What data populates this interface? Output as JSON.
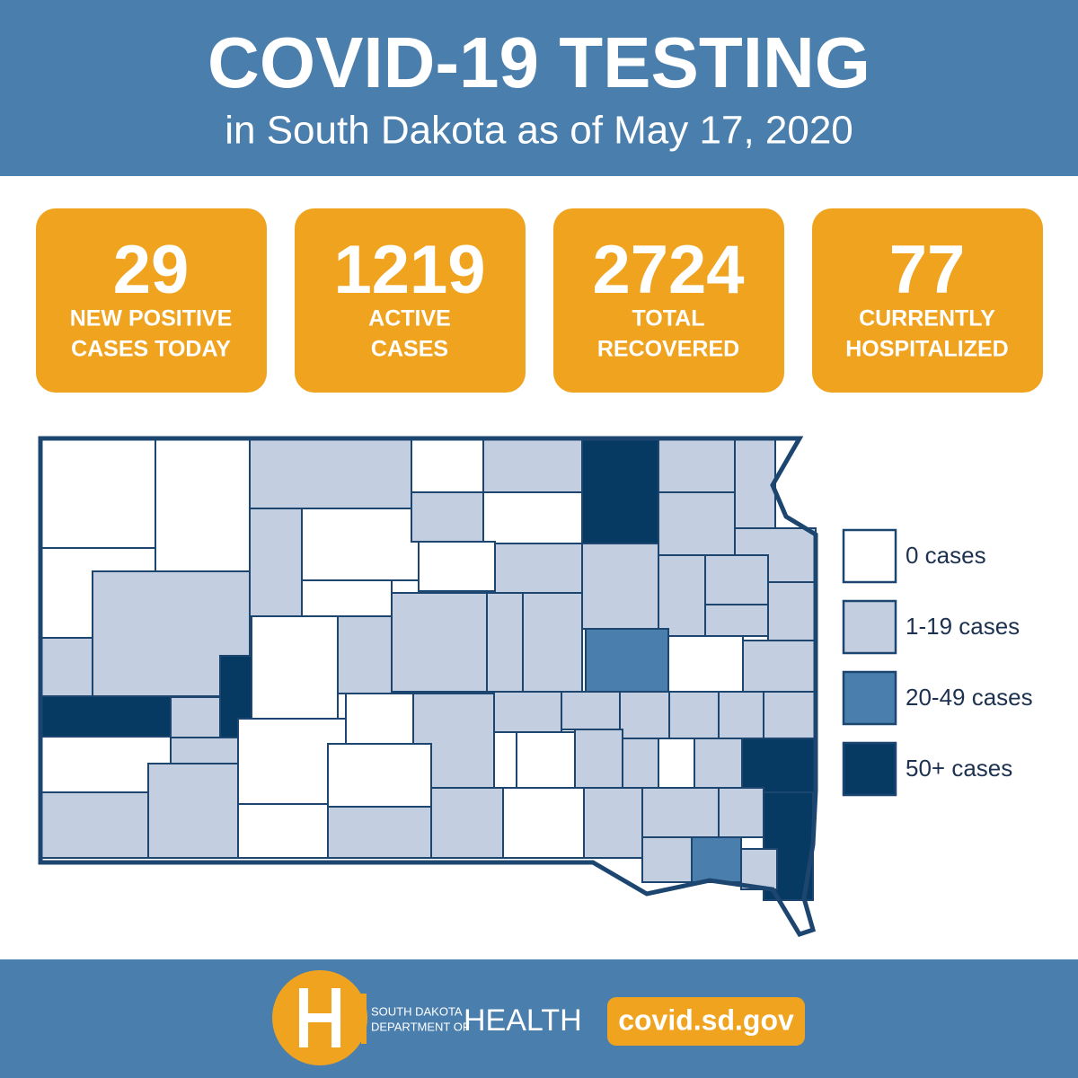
{
  "header": {
    "title": "COVID-19 TESTING",
    "subtitle": "in South Dakota as of May 17, 2020"
  },
  "stats": [
    {
      "value": 29,
      "label": [
        "NEW POSITIVE",
        "CASES TODAY"
      ]
    },
    {
      "value": 1219,
      "label": [
        "ACTIVE",
        "CASES"
      ]
    },
    {
      "value": 2724,
      "label": [
        "TOTAL",
        "RECOVERED"
      ]
    },
    {
      "value": 77,
      "label": [
        "CURRENTLY",
        "HOSPITALIZED"
      ]
    }
  ],
  "legend": [
    {
      "label": "0 cases",
      "color": "#ffffff"
    },
    {
      "label": "1-19 cases",
      "color": "#c3cfe0"
    },
    {
      "label": "20-49 cases",
      "color": "#4a7fad"
    },
    {
      "label": "50+ cases",
      "color": "#073a62"
    }
  ],
  "footer": {
    "org_lines": [
      "SOUTH DAKOTA",
      "DEPARTMENT OF"
    ],
    "org_name": "HEALTH",
    "url": "covid.sd.gov"
  }
}
